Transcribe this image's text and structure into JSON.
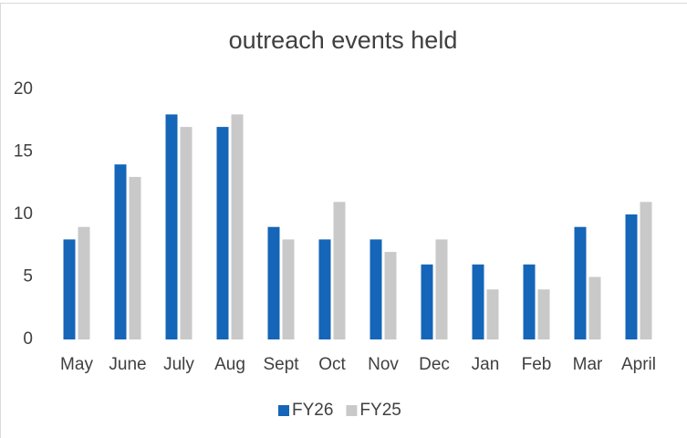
{
  "chart_data": {
    "type": "bar",
    "title": "outreach events held",
    "categories": [
      "May",
      "June",
      "July",
      "Aug",
      "Sept",
      "Oct",
      "Nov",
      "Dec",
      "Jan",
      "Feb",
      "Mar",
      "April"
    ],
    "series": [
      {
        "name": "FY26",
        "color": "#1565b8",
        "values": [
          8,
          14,
          18,
          17,
          9,
          8,
          8,
          6,
          6,
          6,
          9,
          10
        ]
      },
      {
        "name": "FY25",
        "color": "#c9c9c9",
        "values": [
          9,
          13,
          17,
          18,
          8,
          11,
          7,
          8,
          4,
          4,
          5,
          11
        ]
      }
    ],
    "ylim": [
      0,
      20
    ],
    "yticks": [
      0,
      5,
      10,
      15,
      20
    ],
    "grid": false,
    "legend": "bottom"
  }
}
